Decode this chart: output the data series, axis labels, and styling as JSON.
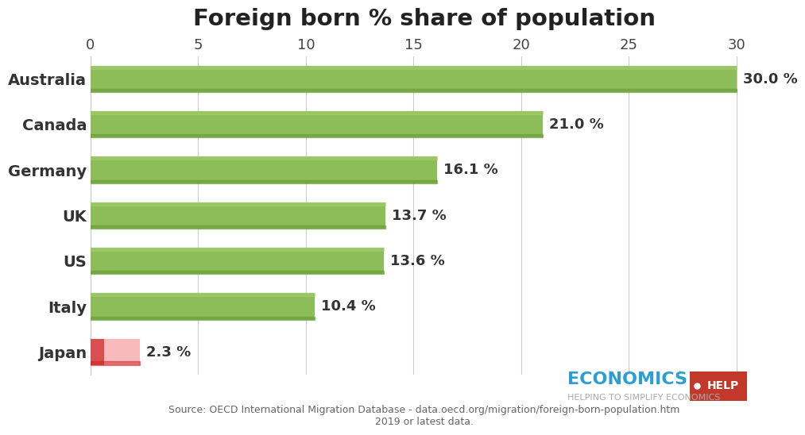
{
  "title": "Foreign born % share of population",
  "categories": [
    "Australia",
    "Canada",
    "Germany",
    "UK",
    "US",
    "Italy",
    "Japan"
  ],
  "values": [
    30.0,
    21.0,
    16.1,
    13.7,
    13.6,
    10.4,
    2.3
  ],
  "bar_color_green_light": "#A8D070",
  "bar_color_green_mid": "#8CBD58",
  "bar_color_green_dark": "#6A9E3A",
  "bar_color_red_light": "#F8BABA",
  "bar_color_red_dark": "#CC2222",
  "label_format": [
    "30.0 %",
    "21.0 %",
    "16.1 %",
    "13.7 %",
    "13.6 %",
    "10.4 %",
    "2.3 %"
  ],
  "xlim": [
    0,
    31
  ],
  "xticks": [
    0,
    5,
    10,
    15,
    20,
    25,
    30
  ],
  "background_color": "#FFFFFF",
  "plot_bg_color": "#FFFFFF",
  "grid_color": "#CCCCCC",
  "source_text": "Source: OECD International Migration Database - data.oecd.org/migration/foreign-born-population.htm\n2019 or latest data.",
  "economics_text": "ECONOMICS",
  "help_text": "•HELP",
  "helping_text": "HELPING TO SIMPLIFY ECONOMICS",
  "title_fontsize": 21,
  "axis_tick_fontsize": 13,
  "bar_label_fontsize": 13,
  "category_fontsize": 14,
  "source_fontsize": 9,
  "economics_fontsize": 16,
  "help_fontsize": 13,
  "helping_fontsize": 8
}
